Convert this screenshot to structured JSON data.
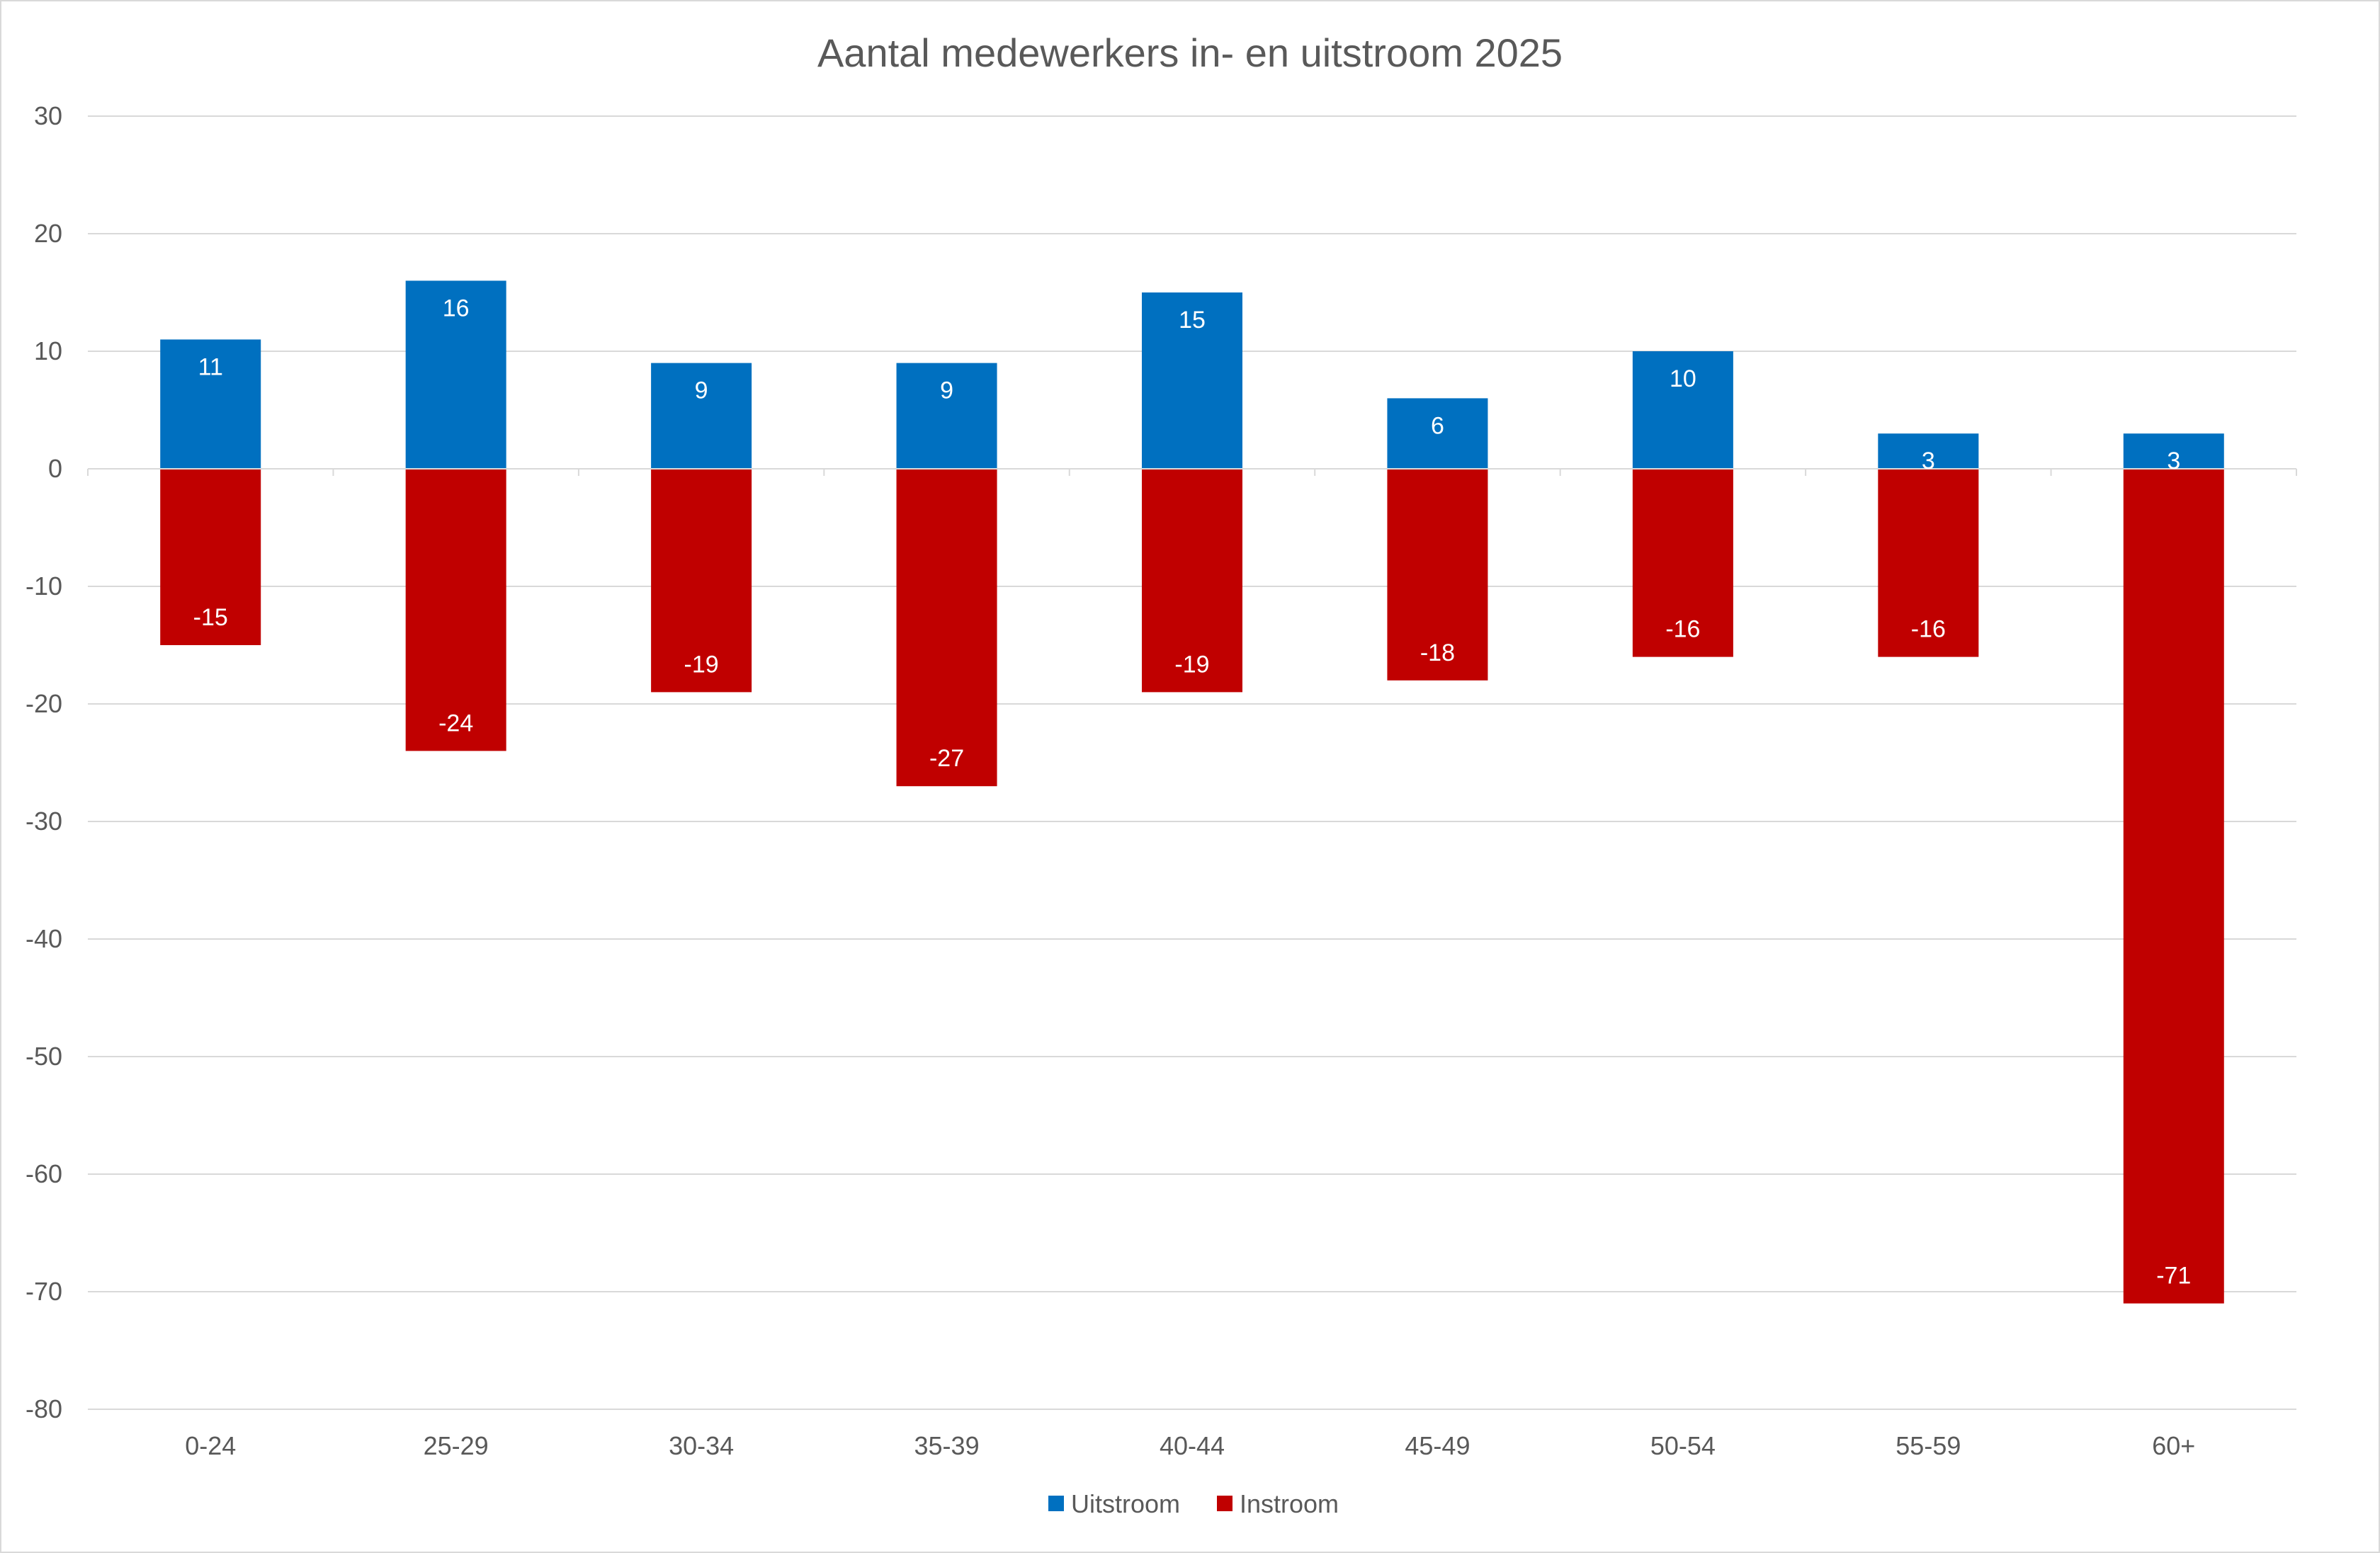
{
  "chart_data": {
    "type": "bar",
    "title": "Aantal medewerkers in- en uitstroom 2025",
    "xlabel": "",
    "ylabel": "",
    "categories": [
      "0-24",
      "25-29",
      "30-34",
      "35-39",
      "40-44",
      "45-49",
      "50-54",
      "55-59",
      "60+"
    ],
    "series": [
      {
        "name": "Uitstroom",
        "color": "#0070C0",
        "values": [
          11,
          16,
          9,
          9,
          15,
          6,
          10,
          3,
          3
        ]
      },
      {
        "name": "Instroom",
        "color": "#C00000",
        "values": [
          -15,
          -24,
          -19,
          -27,
          -19,
          -18,
          -16,
          -16,
          -71
        ]
      }
    ],
    "ylim": [
      -80,
      30
    ],
    "yticks": [
      30,
      20,
      10,
      0,
      -10,
      -20,
      -30,
      -40,
      -50,
      -60,
      -70,
      -80
    ],
    "grid": true,
    "legend": "bottom",
    "data_labels": true
  }
}
